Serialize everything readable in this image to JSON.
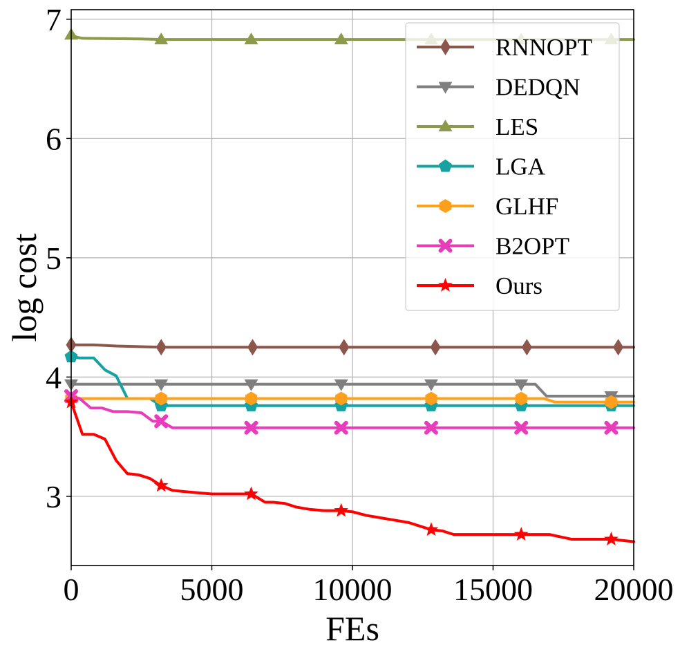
{
  "chart_data": {
    "type": "line",
    "title": "",
    "xlabel": "FEs",
    "ylabel": "log cost",
    "xlim": [
      0,
      20000
    ],
    "ylim": [
      2.42,
      7.08
    ],
    "grid": true,
    "legend_position": "top-right",
    "x_ticks": [
      0,
      5000,
      10000,
      15000,
      20000
    ],
    "y_ticks": [
      3,
      4,
      5,
      6,
      7
    ],
    "x_tick_labels": [
      "0",
      "5000",
      "10000",
      "15000",
      "20000"
    ],
    "y_tick_labels": [
      "3",
      "4",
      "5",
      "6",
      "7"
    ],
    "series": [
      {
        "name": "RNNOPT",
        "color": "#8c564b",
        "marker": "diamond",
        "x": [
          0,
          800,
          1600,
          2400,
          3200,
          20000
        ],
        "y": [
          4.27,
          4.27,
          4.26,
          4.255,
          4.25,
          4.25
        ],
        "marker_x": [
          0,
          3200,
          6450,
          9700,
          12950,
          16200,
          19450
        ]
      },
      {
        "name": "DEDQN",
        "color": "#7f7f7f",
        "marker": "triangle-down",
        "x": [
          0,
          16500,
          16900,
          17300,
          20000
        ],
        "y": [
          3.94,
          3.94,
          3.84,
          3.84,
          3.84
        ],
        "marker_x": [
          0,
          3200,
          6400,
          9600,
          12800,
          16000,
          19200
        ]
      },
      {
        "name": "LES",
        "color": "#8c9a4a",
        "marker": "triangle-up",
        "x": [
          0,
          200,
          400,
          2400,
          3200,
          20000
        ],
        "y": [
          6.87,
          6.85,
          6.84,
          6.835,
          6.83,
          6.83
        ],
        "marker_x": [
          0,
          3200,
          6400,
          9600,
          12800,
          16000,
          19200
        ]
      },
      {
        "name": "LGA",
        "color": "#17a2a2",
        "marker": "pentagon",
        "x": [
          0,
          300,
          800,
          1200,
          1600,
          2000,
          2400,
          2800,
          3200,
          20000
        ],
        "y": [
          4.17,
          4.16,
          4.16,
          4.06,
          4.01,
          3.82,
          3.82,
          3.82,
          3.76,
          3.76
        ],
        "marker_x": [
          0,
          3200,
          6400,
          9600,
          12800,
          16000,
          19200
        ]
      },
      {
        "name": "GLHF",
        "color": "#ffa01c",
        "marker": "hexagon",
        "x": [
          0,
          16800,
          17200,
          20000
        ],
        "y": [
          3.82,
          3.82,
          3.79,
          3.79
        ],
        "marker_x": [
          0,
          3200,
          6400,
          9600,
          12800,
          16000,
          19200
        ]
      },
      {
        "name": "B2OPT",
        "color": "#e83dba",
        "marker": "x",
        "x": [
          0,
          300,
          700,
          1100,
          1500,
          2000,
          2500,
          2900,
          3200,
          3600,
          20000
        ],
        "y": [
          3.84,
          3.82,
          3.74,
          3.74,
          3.71,
          3.71,
          3.7,
          3.63,
          3.63,
          3.575,
          3.575
        ],
        "marker_x": [
          0,
          3200,
          6400,
          9600,
          12800,
          16000,
          19200
        ]
      },
      {
        "name": "Ours",
        "color": "#ff0000",
        "marker": "star",
        "x": [
          0,
          400,
          800,
          1200,
          1600,
          2000,
          2400,
          2800,
          3200,
          3600,
          4000,
          4500,
          5000,
          5500,
          6400,
          6900,
          7200,
          7600,
          8000,
          8500,
          9000,
          9600,
          10000,
          10500,
          11000,
          11500,
          12000,
          12400,
          12800,
          13200,
          13600,
          14500,
          15500,
          16000,
          17000,
          17400,
          17800,
          18500,
          19200,
          19600,
          20000
        ],
        "y": [
          3.79,
          3.52,
          3.52,
          3.48,
          3.3,
          3.19,
          3.18,
          3.15,
          3.09,
          3.05,
          3.04,
          3.03,
          3.02,
          3.02,
          3.02,
          2.95,
          2.95,
          2.94,
          2.91,
          2.89,
          2.88,
          2.88,
          2.87,
          2.84,
          2.82,
          2.8,
          2.78,
          2.75,
          2.72,
          2.71,
          2.68,
          2.68,
          2.68,
          2.68,
          2.68,
          2.66,
          2.64,
          2.64,
          2.64,
          2.63,
          2.62
        ],
        "marker_x": [
          0,
          3200,
          6400,
          9600,
          12800,
          16000,
          19200
        ]
      }
    ]
  }
}
